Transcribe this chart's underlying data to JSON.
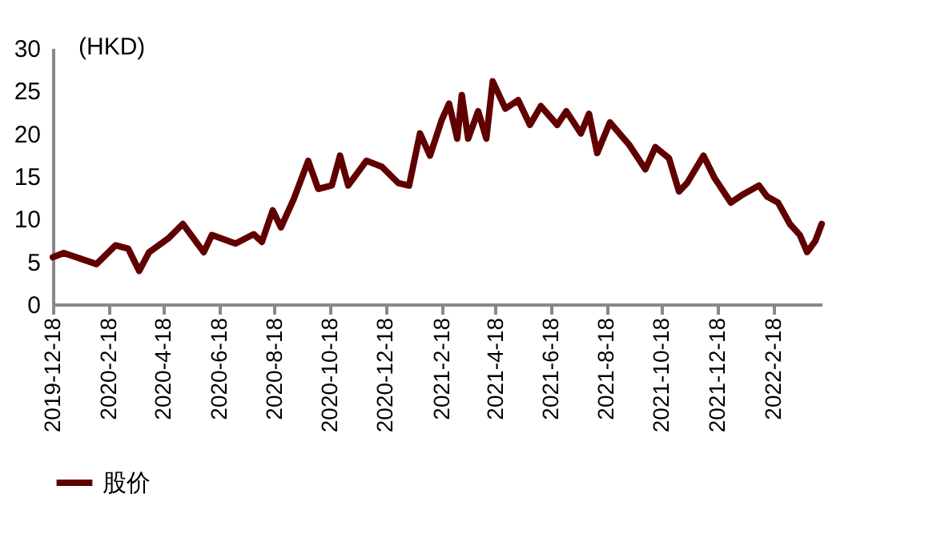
{
  "chart_data": {
    "type": "line",
    "ylabel": "(HKD)",
    "x": [
      "2019-12-18",
      "2019-12-30",
      "2020-02-04",
      "2020-02-25",
      "2020-03-10",
      "2020-03-22",
      "2020-04-02",
      "2020-04-23",
      "2020-05-09",
      "2020-06-01",
      "2020-06-10",
      "2020-07-06",
      "2020-07-26",
      "2020-08-04",
      "2020-08-16",
      "2020-08-25",
      "2020-09-08",
      "2020-09-24",
      "2020-10-05",
      "2020-10-20",
      "2020-10-29",
      "2020-11-07",
      "2020-11-27",
      "2020-12-14",
      "2021-01-01",
      "2021-01-13",
      "2021-01-25",
      "2021-02-05",
      "2021-02-18",
      "2021-02-26",
      "2021-03-07",
      "2021-03-12",
      "2021-03-19",
      "2021-03-30",
      "2021-04-08",
      "2021-04-15",
      "2021-04-29",
      "2021-05-13",
      "2021-05-26",
      "2021-06-07",
      "2021-06-25",
      "2021-07-05",
      "2021-07-21",
      "2021-07-30",
      "2021-08-08",
      "2021-08-22",
      "2021-09-12",
      "2021-09-30",
      "2021-10-11",
      "2021-10-26",
      "2021-11-06",
      "2021-11-15",
      "2021-12-03",
      "2021-12-15",
      "2022-01-02",
      "2022-01-16",
      "2022-02-02",
      "2022-02-11",
      "2022-02-23",
      "2022-03-08",
      "2022-03-19",
      "2022-03-27",
      "2022-04-05",
      "2022-04-12"
    ],
    "series": [
      {
        "name": "股价",
        "color": "#600000",
        "values": [
          5.5,
          6.0,
          4.7,
          6.9,
          6.5,
          3.9,
          6.1,
          7.7,
          9.4,
          6.1,
          8.1,
          7.1,
          8.2,
          7.3,
          11.0,
          9.0,
          12.3,
          16.8,
          13.5,
          13.9,
          17.4,
          13.9,
          16.8,
          16.1,
          14.2,
          13.9,
          20.0,
          17.4,
          21.6,
          23.5,
          19.4,
          24.5,
          19.4,
          22.6,
          19.4,
          26.1,
          22.9,
          23.9,
          21.0,
          23.2,
          21.0,
          22.6,
          20.0,
          22.3,
          17.7,
          21.3,
          18.7,
          15.8,
          18.4,
          17.1,
          13.2,
          14.2,
          17.4,
          14.8,
          11.9,
          12.9,
          13.9,
          12.6,
          11.9,
          9.4,
          8.1,
          6.1,
          7.4,
          9.4
        ]
      }
    ],
    "xlim": [
      "2019-12-18",
      "2022-04-12"
    ],
    "xticks": [
      {
        "value": "2019-12-18",
        "label": "2019-12-18"
      },
      {
        "value": "2020-02-18",
        "label": "2020-2-18"
      },
      {
        "value": "2020-04-18",
        "label": "2020-4-18"
      },
      {
        "value": "2020-06-18",
        "label": "2020-6-18"
      },
      {
        "value": "2020-08-18",
        "label": "2020-8-18"
      },
      {
        "value": "2020-10-18",
        "label": "2020-10-18"
      },
      {
        "value": "2020-12-18",
        "label": "2020-12-18"
      },
      {
        "value": "2021-02-18",
        "label": "2021-2-18"
      },
      {
        "value": "2021-04-18",
        "label": "2021-4-18"
      },
      {
        "value": "2021-06-18",
        "label": "2021-6-18"
      },
      {
        "value": "2021-08-18",
        "label": "2021-8-18"
      },
      {
        "value": "2021-10-18",
        "label": "2021-10-18"
      },
      {
        "value": "2021-12-18",
        "label": "2021-12-18"
      },
      {
        "value": "2022-02-18",
        "label": "2022-2-18"
      }
    ],
    "ylim": [
      0,
      30
    ],
    "yticks": [
      0,
      5,
      10,
      15,
      20,
      25,
      30
    ],
    "grid": false,
    "legend": "bottom",
    "line_style": "solid",
    "marker": "none"
  }
}
